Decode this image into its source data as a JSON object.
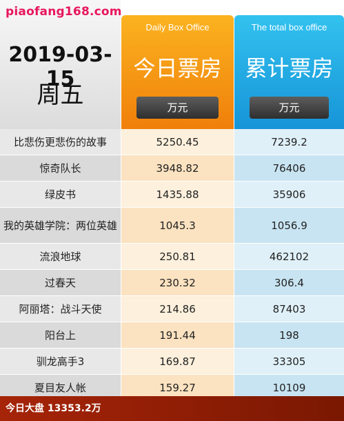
{
  "site": "piaofang168.com",
  "date": "2019-03-15",
  "weekday": "周五",
  "columns": {
    "daily": {
      "en": "Daily Box Office",
      "cn": "今日票房",
      "unit": "万元"
    },
    "total": {
      "en": "The total box office",
      "cn": "累计票房",
      "unit": "万元"
    }
  },
  "rows": [
    {
      "name": "比悲伤更悲伤的故事",
      "daily": "5250.45",
      "total": "7239.2"
    },
    {
      "name": "惊奇队长",
      "daily": "3948.82",
      "total": "76406"
    },
    {
      "name": "绿皮书",
      "daily": "1435.88",
      "total": "35906"
    },
    {
      "name": "我的英雄学院：两位英雄",
      "daily": "1045.3",
      "total": "1056.9"
    },
    {
      "name": "流浪地球",
      "daily": "250.81",
      "total": "462102"
    },
    {
      "name": "过春天",
      "daily": "230.32",
      "total": "306.4"
    },
    {
      "name": "阿丽塔：战斗天使",
      "daily": "214.86",
      "total": "87403"
    },
    {
      "name": "阳台上",
      "daily": "191.44",
      "total": "198"
    },
    {
      "name": "驯龙高手3",
      "daily": "169.87",
      "total": "33305"
    },
    {
      "name": "夏目友人帐",
      "daily": "159.27",
      "total": "10109"
    }
  ],
  "footer": "今日大盘 13353.2万"
}
